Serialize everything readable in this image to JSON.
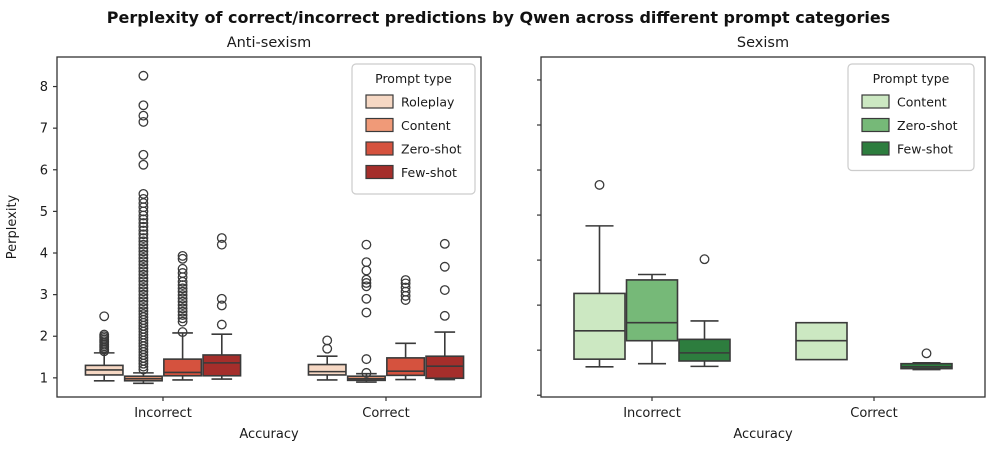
{
  "title": "Perplexity of correct/incorrect predictions by Qwen across different prompt categories",
  "chart_data": [
    {
      "type": "box",
      "title": "Anti-sexism",
      "xlabel": "Accuracy",
      "ylabel": "Perplexity",
      "categories": [
        "Incorrect",
        "Correct"
      ],
      "yticks": [
        1,
        2,
        3,
        4,
        5,
        6,
        7,
        8
      ],
      "ytick_labels_visible": true,
      "ylim": [
        0.54,
        8.71
      ],
      "grid": false,
      "legend_title": "Prompt type",
      "legend_position": "upper right",
      "series": [
        {
          "name": "Roleplay",
          "color": "#f6d8c4",
          "boxes": [
            {
              "whislo": 0.93,
              "q1": 1.07,
              "med": 1.19,
              "q3": 1.3,
              "whishi": 1.6,
              "fliers": [
                1.64,
                1.68,
                1.72,
                1.76,
                1.8,
                1.84,
                1.88,
                1.92,
                1.96,
                2.0,
                2.04,
                2.48
              ]
            },
            {
              "whislo": 0.95,
              "q1": 1.07,
              "med": 1.15,
              "q3": 1.32,
              "whishi": 1.52,
              "fliers": [
                1.7,
                1.9
              ]
            }
          ]
        },
        {
          "name": "Content",
          "color": "#f09a78",
          "boxes": [
            {
              "whislo": 0.87,
              "q1": 0.93,
              "med": 0.98,
              "q3": 1.04,
              "whishi": 1.12,
              "fliers": [
                1.2,
                1.27,
                1.34,
                1.41,
                1.48,
                1.55,
                1.62,
                1.69,
                1.76,
                1.83,
                1.9,
                1.97,
                2.04,
                2.11,
                2.18,
                2.25,
                2.32,
                2.39,
                2.46,
                2.53,
                2.6,
                2.68,
                2.76,
                2.84,
                2.92,
                3.0,
                3.08,
                3.16,
                3.24,
                3.32,
                3.4,
                3.48,
                3.56,
                3.64,
                3.72,
                3.8,
                3.88,
                3.96,
                4.04,
                4.12,
                4.2,
                4.28,
                4.36,
                4.45,
                4.54,
                4.63,
                4.72,
                4.81,
                4.9,
                5.0,
                5.1,
                5.2,
                5.3,
                5.42,
                6.12,
                6.36,
                7.15,
                7.3,
                7.55,
                8.26
              ]
            },
            {
              "whislo": 0.9,
              "q1": 0.94,
              "med": 0.98,
              "q3": 1.04,
              "whishi": 1.1,
              "fliers": [
                1.12,
                1.45,
                2.57,
                2.9,
                3.2,
                3.28,
                3.36,
                3.58,
                3.78,
                4.2
              ]
            }
          ]
        },
        {
          "name": "Zero-shot",
          "color": "#d5523e",
          "boxes": [
            {
              "whislo": 0.95,
              "q1": 1.05,
              "med": 1.13,
              "q3": 1.45,
              "whishi": 2.08,
              "fliers": [
                2.1,
                2.35,
                2.43,
                2.51,
                2.59,
                2.67,
                2.75,
                2.83,
                2.91,
                2.99,
                3.07,
                3.15,
                3.23,
                3.31,
                3.42,
                3.52,
                3.62,
                3.86,
                3.93
              ]
            },
            {
              "whislo": 0.96,
              "q1": 1.06,
              "med": 1.16,
              "q3": 1.48,
              "whishi": 1.83,
              "fliers": [
                2.87,
                2.97,
                3.07,
                3.17,
                3.27,
                3.35
              ]
            }
          ]
        },
        {
          "name": "Few-shot",
          "color": "#a52e2b",
          "boxes": [
            {
              "whislo": 0.97,
              "q1": 1.05,
              "med": 1.36,
              "q3": 1.55,
              "whishi": 2.05,
              "fliers": [
                2.28,
                2.74,
                2.9,
                4.2,
                4.36
              ]
            },
            {
              "whislo": 0.96,
              "q1": 0.99,
              "med": 1.28,
              "q3": 1.52,
              "whishi": 2.1,
              "fliers": [
                2.49,
                3.11,
                3.67,
                4.22
              ]
            }
          ]
        }
      ]
    },
    {
      "type": "box",
      "title": "Sexism",
      "xlabel": "Accuracy",
      "ylabel": "",
      "categories": [
        "Incorrect",
        "Correct"
      ],
      "yticks": [
        1,
        2,
        3,
        4,
        5,
        6,
        7,
        8
      ],
      "ytick_labels_visible": false,
      "ylim": [
        0.96,
        8.51
      ],
      "grid": false,
      "legend_title": "Prompt type",
      "legend_position": "upper right",
      "series": [
        {
          "name": "Content",
          "color": "#cce8c2",
          "boxes": [
            {
              "whislo": 1.63,
              "q1": 1.8,
              "med": 2.43,
              "q3": 3.26,
              "whishi": 4.76,
              "fliers": [
                5.67
              ]
            },
            {
              "whislo": 1.79,
              "q1": 1.79,
              "med": 2.21,
              "q3": 2.61,
              "whishi": 2.61,
              "fliers": []
            }
          ]
        },
        {
          "name": "Zero-shot",
          "color": "#76b978",
          "boxes": [
            {
              "whislo": 1.7,
              "q1": 2.21,
              "med": 2.61,
              "q3": 3.56,
              "whishi": 3.68,
              "fliers": []
            },
            null
          ]
        },
        {
          "name": "Few-shot",
          "color": "#2d7d3e",
          "boxes": [
            {
              "whislo": 1.64,
              "q1": 1.76,
              "med": 1.94,
              "q3": 2.24,
              "whishi": 2.65,
              "fliers": [
                4.02
              ]
            },
            {
              "whislo": 1.57,
              "q1": 1.59,
              "med": 1.63,
              "q3": 1.7,
              "whishi": 1.72,
              "fliers": [
                1.93
              ]
            }
          ]
        }
      ]
    }
  ],
  "style": {
    "box_edge": "#3a3a3a",
    "spine": "#333333",
    "text": "#1a1a1a",
    "legend_border": "#cccccc",
    "legend_bg": "#ffffff"
  }
}
